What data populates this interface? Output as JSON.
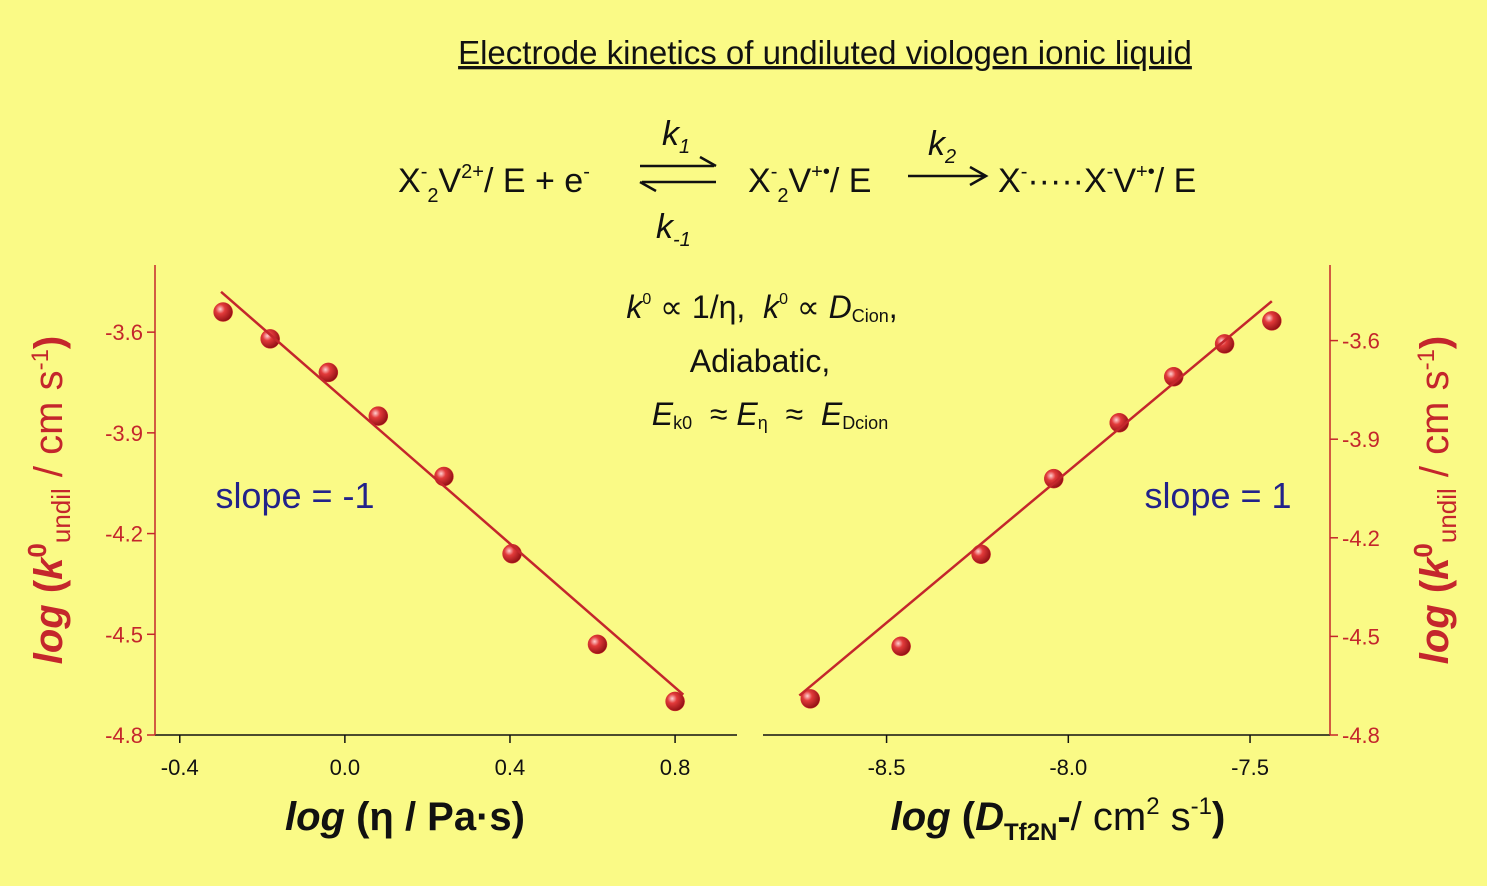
{
  "header": {
    "title": "Electrode kinetics of undiluted viologen ionic liquid",
    "scheme": [
      "X",
      "-",
      "2",
      "V",
      "2+",
      "/ E + e",
      "-",
      "k",
      "1",
      "k",
      "-1",
      "X",
      "-",
      "2",
      "V",
      "+•",
      "/ E",
      "k",
      "2",
      "X",
      "-",
      "·····X",
      "-",
      "V",
      "+•",
      "/ E"
    ],
    "relations": [
      [
        "k",
        "0",
        " ∝ 1/η,  ",
        "k",
        "0",
        " ∝ ",
        "D",
        "Cion",
        ","
      ],
      [
        "Adiabatic,"
      ],
      [
        "E",
        "k0",
        "  ≈ ",
        "E",
        "η",
        "  ≈  ",
        "E",
        "Dcion"
      ]
    ]
  },
  "chart_data": [
    {
      "type": "scatter",
      "yaxis_side": "left",
      "xlabel": [
        "log",
        " (η / Pa·s)"
      ],
      "ylabel": [
        "log",
        " (",
        "k",
        "0",
        "undil",
        " / cm s",
        "-1",
        ")"
      ],
      "annotation": "slope = -1",
      "xlim": [
        -0.46,
        0.95
      ],
      "ylim": [
        -4.8,
        -3.4
      ],
      "xticks": [
        -0.4,
        {
          "value": 0,
          "label": "0.0"
        },
        0.4,
        0.8
      ],
      "yticks": [
        -3.6,
        -3.9,
        -4.2,
        -4.5,
        -4.8
      ],
      "series": [
        {
          "mode": "markers",
          "color": "#d62f2f",
          "x": [
            -0.295,
            -0.181,
            -0.04,
            0.081,
            0.24,
            0.405,
            0.612,
            0.8
          ],
          "values": [
            -3.54,
            -3.62,
            -3.72,
            -3.85,
            -4.03,
            -4.26,
            -4.53,
            -4.7
          ]
        },
        {
          "mode": "line",
          "color": "#c4262c",
          "x": [
            -0.3,
            0.82
          ],
          "values": [
            -3.48,
            -4.68
          ]
        }
      ]
    },
    {
      "type": "scatter",
      "yaxis_side": "right",
      "xlabel": [
        "log",
        " (",
        "D",
        "Tf2N",
        "-",
        "/ cm",
        "2",
        " s",
        "-1",
        ")"
      ],
      "ylabel": [
        "log",
        " (",
        "k",
        "0",
        "undil",
        " / cm s",
        "-1",
        ")"
      ],
      "annotation": "slope = 1",
      "xlim": [
        -8.84,
        -7.28
      ],
      "ylim": [
        -4.8,
        -3.37
      ],
      "xticks": [
        -8.5,
        {
          "value": -8,
          "label": "-8.0"
        },
        -7.5
      ],
      "yticks": [
        -3.6,
        -3.9,
        -4.2,
        -4.5,
        -4.8
      ],
      "series": [
        {
          "mode": "markers",
          "color": "#d62f2f",
          "x": [
            -8.71,
            -8.46,
            -8.24,
            -8.04,
            -7.86,
            -7.71,
            -7.57,
            -7.44
          ],
          "values": [
            -4.69,
            -4.53,
            -4.25,
            -4.02,
            -3.85,
            -3.71,
            -3.61,
            -3.54
          ]
        },
        {
          "mode": "line",
          "color": "#c4262c",
          "x": [
            -8.74,
            -7.44
          ],
          "values": [
            -4.68,
            -3.48
          ]
        }
      ]
    }
  ]
}
